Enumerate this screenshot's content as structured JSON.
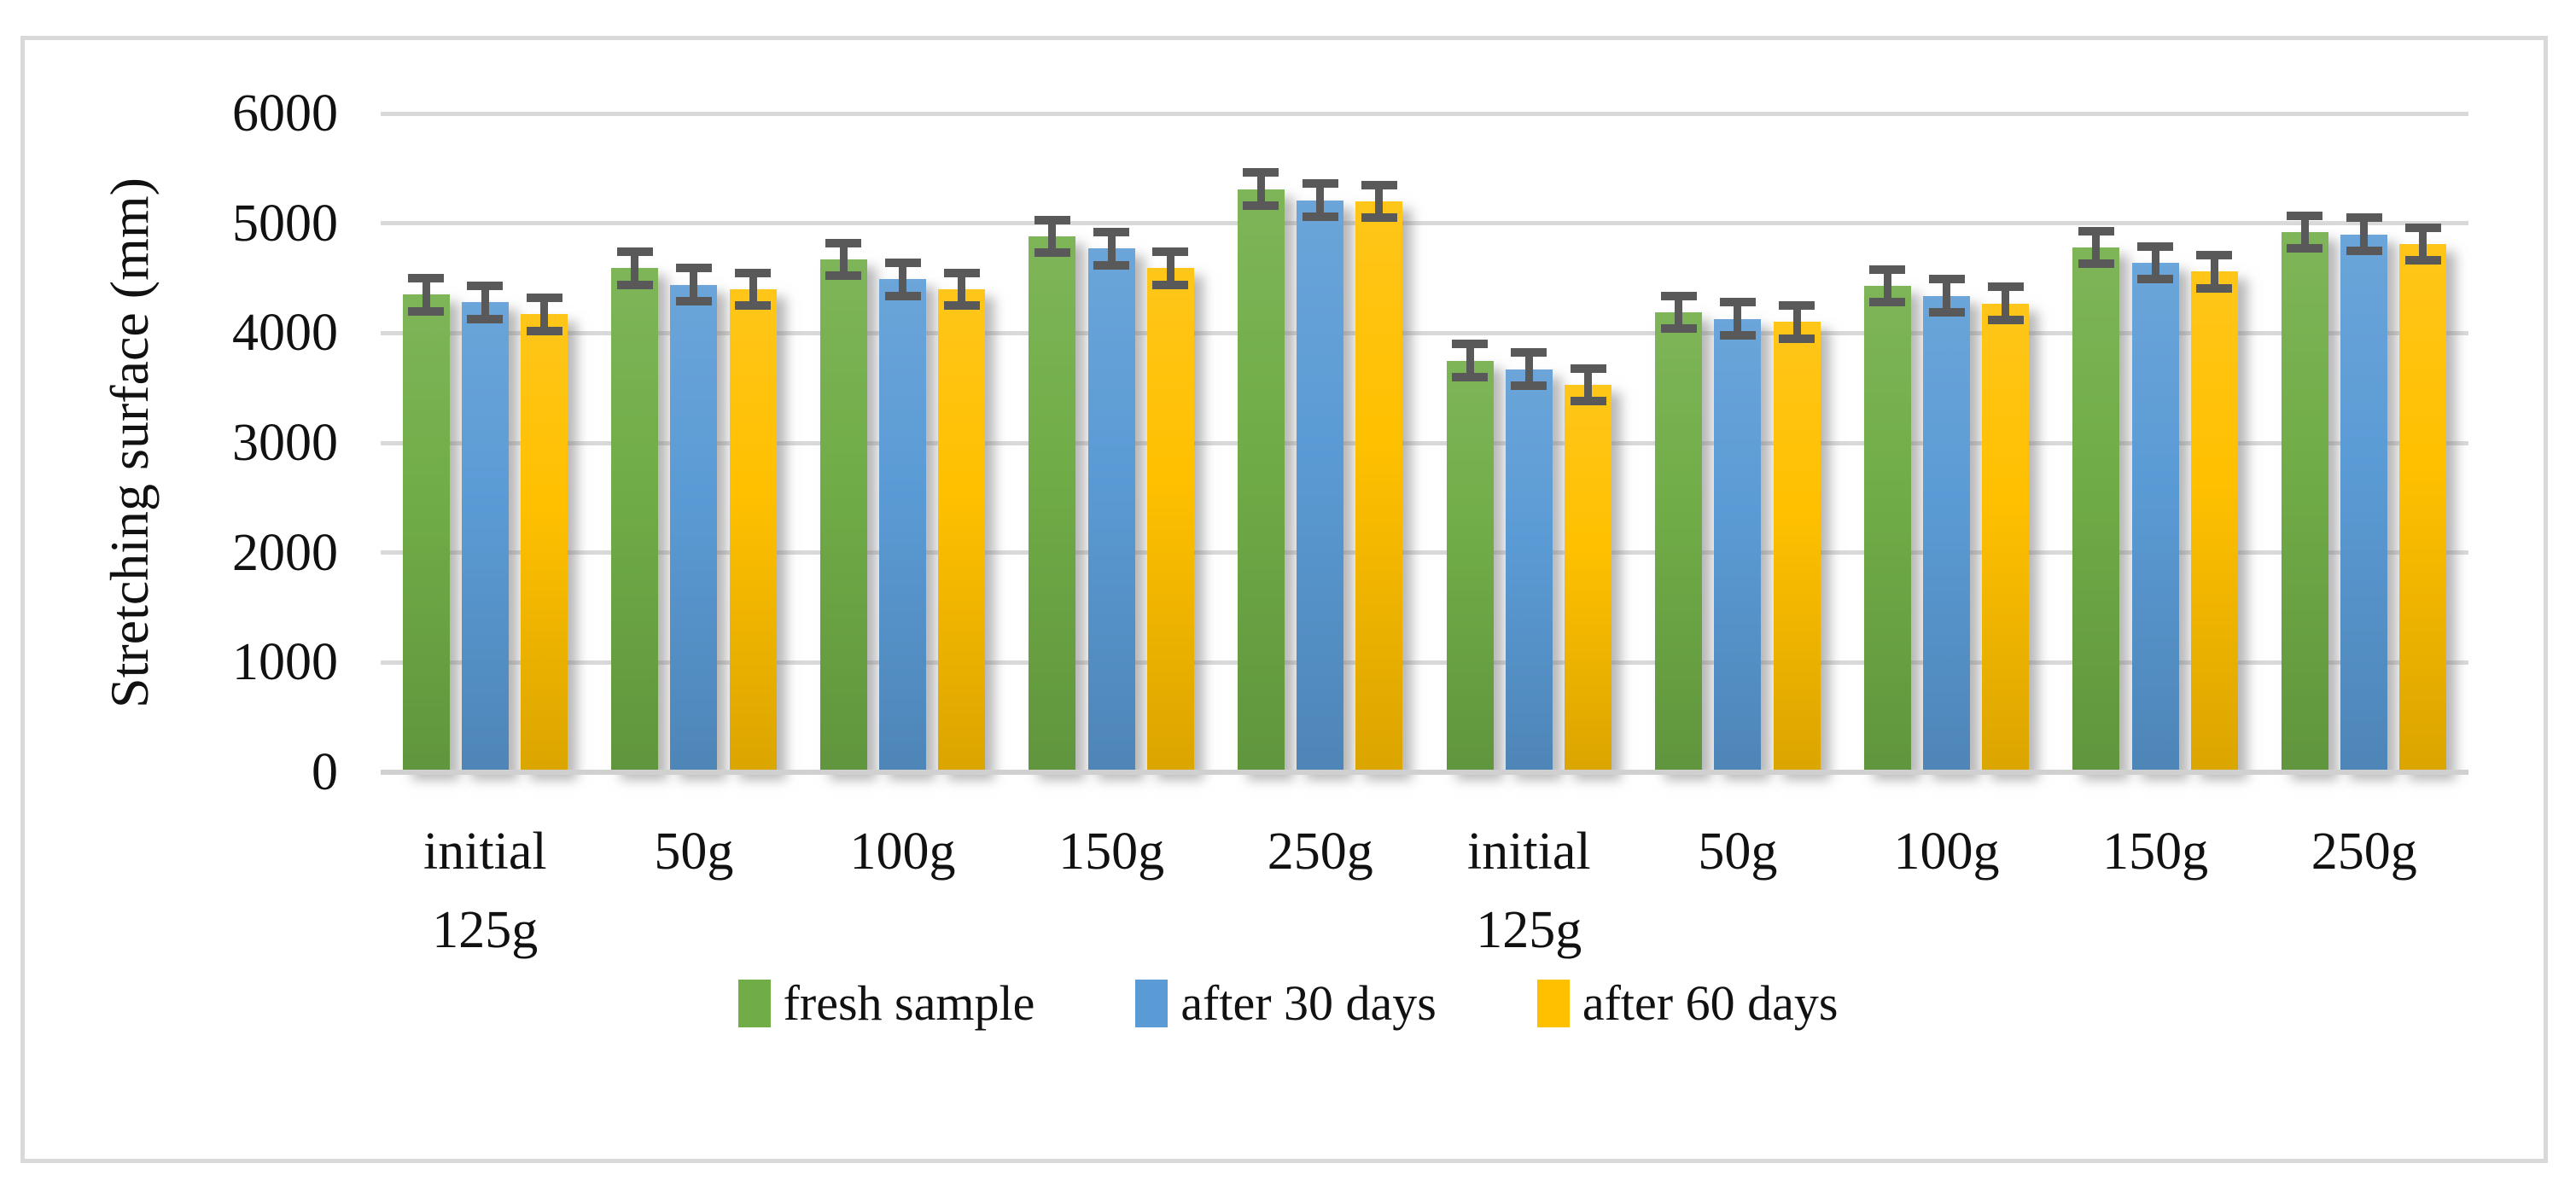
{
  "chart_data": {
    "type": "bar",
    "title": "",
    "ylabel": "Stretching surface (mm)",
    "xlabel": "",
    "ylim": [
      0,
      6000
    ],
    "yticks": [
      0,
      1000,
      2000,
      3000,
      4000,
      5000,
      6000
    ],
    "grid": true,
    "grid_color": "#d9d9d9",
    "axis_line_color": "#d0d0d0",
    "legend_position": "bottom",
    "categories": [
      "initial\n125g",
      "50g",
      "100g",
      "150g",
      "250g",
      "initial\n125g",
      "50g",
      "100g",
      "150g",
      "250g"
    ],
    "series": [
      {
        "name": "fresh sample",
        "color": "#70ad47",
        "values": [
          4350,
          4590,
          4670,
          4880,
          5310,
          3750,
          4190,
          4430,
          4780,
          4920
        ]
      },
      {
        "name": "after 30 days",
        "color": "#5b9bd5",
        "values": [
          4280,
          4440,
          4490,
          4770,
          5210,
          3670,
          4130,
          4340,
          4640,
          4900
        ]
      },
      {
        "name": "after 60 days",
        "color": "#ffc000",
        "values": [
          4170,
          4400,
          4400,
          4590,
          5200,
          3530,
          4100,
          4270,
          4560,
          4810
        ]
      }
    ],
    "error_bar": {
      "plus_minus": 150,
      "color": "#595959"
    }
  }
}
